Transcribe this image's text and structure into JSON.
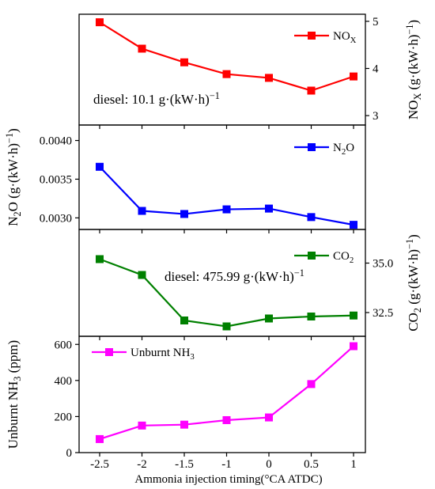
{
  "chart_data": [
    {
      "type": "line",
      "x": [
        -2.5,
        -2,
        -1.5,
        -1,
        0,
        0.5,
        1
      ],
      "series": [
        {
          "name": "NOX",
          "values": [
            4.98,
            4.42,
            4.13,
            3.88,
            3.8,
            3.53,
            3.83
          ],
          "color": "#ff0000"
        }
      ],
      "ylabel": "NOX (g·(kW·h)−1)",
      "ylim": [
        2.8,
        5.15
      ],
      "yticks": [
        3,
        4,
        5
      ],
      "axis_side": "right",
      "annotation": "diesel: 10.1 g·(kW·h)−1",
      "legend": "top-right"
    },
    {
      "type": "line",
      "x": [
        -2.5,
        -2,
        -1.5,
        -1,
        0,
        0.5,
        1
      ],
      "series": [
        {
          "name": "N2O",
          "values": [
            0.00366,
            0.00309,
            0.00305,
            0.00311,
            0.00312,
            0.00301,
            0.00291
          ],
          "color": "#0000ff"
        }
      ],
      "ylabel": "N2O (g·(kW·h)−1)",
      "ylim": [
        0.00285,
        0.0042
      ],
      "yticks": [
        0.003,
        0.0035,
        0.004
      ],
      "yticklabels": [
        "0.0030",
        "0.0035",
        "0.0040"
      ],
      "axis_side": "left",
      "legend": "top-right"
    },
    {
      "type": "line",
      "x": [
        -2.5,
        -2,
        -1.5,
        -1,
        0,
        0.5,
        1
      ],
      "series": [
        {
          "name": "CO2",
          "values": [
            35.2,
            34.4,
            32.1,
            31.8,
            32.2,
            32.3,
            32.35
          ],
          "color": "#008000"
        }
      ],
      "ylabel": "CO2 (g·(kW·h)−1)",
      "ylim": [
        31.3,
        36.7
      ],
      "yticks": [
        32.5,
        35.0
      ],
      "yticklabels": [
        "32.5",
        "35.0"
      ],
      "axis_side": "right",
      "annotation": "diesel: 475.99 g·(kW·h)−1",
      "legend": "top-right"
    },
    {
      "type": "line",
      "x": [
        -2.5,
        -2,
        -1.5,
        -1,
        0,
        0.5,
        1
      ],
      "series": [
        {
          "name": "Unburnt NH3",
          "values": [
            75,
            150,
            155,
            180,
            195,
            380,
            590
          ],
          "color": "#ff00ff"
        }
      ],
      "ylabel": "Unburnt NH3 (ppm)",
      "ylim": [
        0,
        645
      ],
      "yticks": [
        0,
        200,
        400,
        600
      ],
      "axis_side": "left",
      "legend": "top-left"
    }
  ],
  "x_axis": {
    "label": "Ammonia injection timing(°CA ATDC)",
    "xlim": [
      -2.75,
      1.15
    ],
    "ticks": [
      -2.5,
      -2,
      -1.5,
      -1,
      0,
      0.5,
      1
    ],
    "tick_labels": [
      "-2.5",
      "-2",
      "-1.5",
      "-1",
      "0",
      "0.5",
      "1"
    ],
    "categorical_spacing": true
  }
}
